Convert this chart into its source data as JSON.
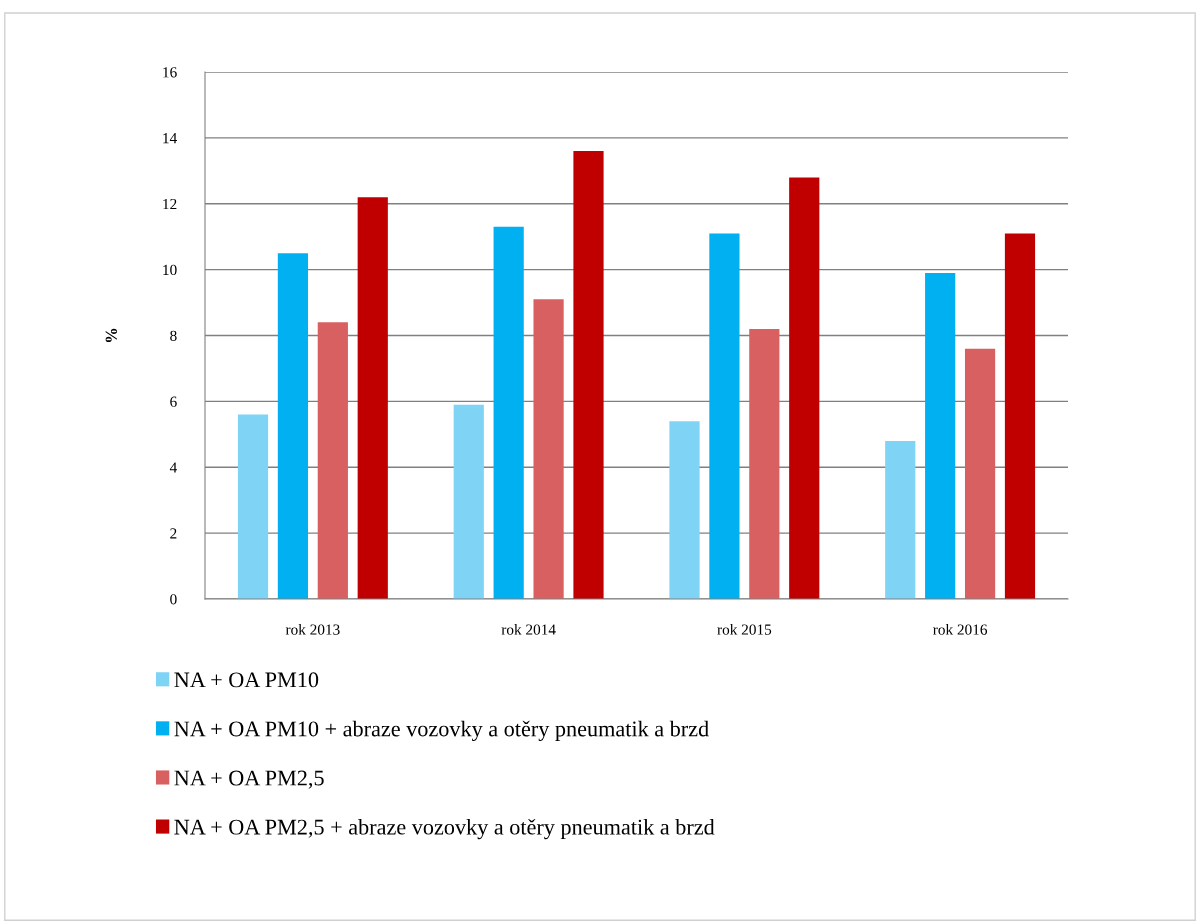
{
  "chart_data": {
    "type": "bar",
    "ylabel": "%",
    "categories": [
      "rok 2013",
      "rok 2014",
      "rok 2015",
      "rok 2016"
    ],
    "series": [
      {
        "name": "NA + OA PM10",
        "color": "#7fd3f5",
        "values": [
          5.6,
          5.9,
          5.4,
          4.8
        ]
      },
      {
        "name": "NA + OA PM10 + abraze vozovky a otěry pneumatik a brzd",
        "color": "#00b0f0",
        "values": [
          10.5,
          11.3,
          11.1,
          9.9
        ]
      },
      {
        "name": "NA + OA PM2,5",
        "color": "#d96060",
        "values": [
          8.4,
          9.1,
          8.2,
          7.6
        ]
      },
      {
        "name": "NA + OA PM2,5 + abraze vozovky a otěry pneumatik a brzd",
        "color": "#c00000",
        "values": [
          12.2,
          13.6,
          12.8,
          11.1
        ]
      }
    ],
    "ylim": [
      0,
      16
    ],
    "yticks": [
      0,
      2,
      4,
      6,
      8,
      10,
      12,
      14,
      16
    ],
    "grid": "y",
    "legend": "bottom left"
  }
}
